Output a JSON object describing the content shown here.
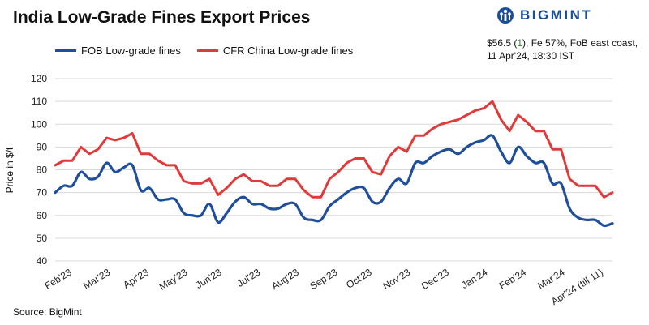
{
  "title": "India Low-Grade Fines Export Prices",
  "logo": {
    "text": "BIGMINT",
    "icon": "bigmint-logo-icon",
    "color": "#1a4e9c"
  },
  "info": {
    "price_prefix": "$56.5 (",
    "change_value": "1",
    "price_suffix": "), Fe 57%, FoB east coast,",
    "line2": "11 Apr'24, 18:30 IST",
    "change_color": "#2e8b2e"
  },
  "source": "Source: BigMint",
  "chart_data": {
    "type": "line",
    "ylabel": "Price in $/t",
    "ylim": [
      40,
      120
    ],
    "yticks": [
      40,
      50,
      60,
      70,
      80,
      90,
      100,
      110,
      120
    ],
    "grid": "horizontal",
    "legend_position": "top-left",
    "x_tick_labels": [
      "Feb'23",
      "Mar'23",
      "Apr'23",
      "May'23",
      "Jun'23",
      "Jul'23",
      "Aug'23",
      "Sep'23",
      "Oct'23",
      "Nov'23",
      "Dec'23",
      "Jan'24",
      "Feb'24",
      "Mar'24",
      "Apr'24 (till 11)"
    ],
    "x_tick_positions": [
      2,
      6.5,
      11,
      15.5,
      19.5,
      24,
      28.5,
      33,
      37,
      41.5,
      46,
      50.5,
      55,
      59.5,
      64
    ],
    "series": [
      {
        "name": "FOB Low-grade fines",
        "color": "#1f4f9a",
        "values": [
          70,
          73,
          73,
          79,
          76,
          77,
          83,
          79,
          81,
          82,
          71,
          72,
          67,
          67,
          67,
          61,
          60,
          60,
          65,
          57,
          61,
          66,
          68,
          65,
          65,
          63,
          63,
          65,
          65,
          59,
          58,
          58,
          64,
          67,
          70,
          72,
          72,
          66,
          66,
          72,
          76,
          74,
          83,
          83,
          86,
          88,
          89,
          87,
          90,
          92,
          93,
          95,
          88,
          83,
          90,
          86,
          83,
          83,
          74,
          74,
          63,
          59,
          58,
          58,
          55.5,
          56.5
        ]
      },
      {
        "name": "CFR China Low-grade fines",
        "color": "#e03a3a",
        "values": [
          82,
          84,
          84,
          90,
          87,
          89,
          94,
          93,
          94,
          96,
          87,
          87,
          84,
          82,
          82,
          75,
          74,
          74,
          76,
          69,
          72,
          76,
          78,
          75,
          75,
          73,
          73,
          76,
          76,
          71,
          68,
          68,
          76,
          79,
          83,
          85,
          85,
          79,
          78,
          86,
          90,
          88,
          95,
          95,
          98,
          100,
          101,
          102,
          104,
          106,
          107,
          110,
          102,
          97,
          104,
          101,
          97,
          97,
          89,
          89,
          76,
          73,
          73,
          73,
          68,
          70
        ]
      }
    ]
  }
}
